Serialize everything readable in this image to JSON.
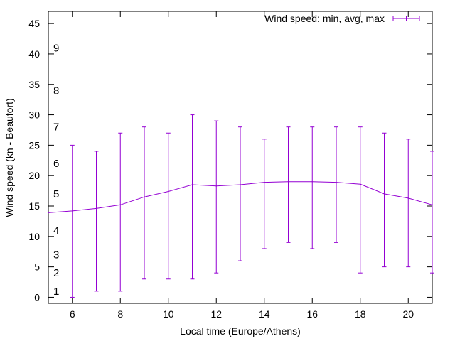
{
  "chart_data": {
    "type": "line",
    "title": "",
    "xlabel": "Local time (Europe/Athens)",
    "ylabel": "Wind speed (kn - Beaufort)",
    "xlim": [
      5,
      21
    ],
    "ylim": [
      -1,
      47
    ],
    "x_ticks": [
      6,
      8,
      10,
      12,
      14,
      16,
      18,
      20
    ],
    "y_ticks": [
      0,
      5,
      10,
      15,
      20,
      25,
      30,
      35,
      40,
      45
    ],
    "legend": "top-right",
    "series": [
      {
        "name": "Wind speed: min, avg, max",
        "color": "#9400d3",
        "x": [
          5,
          6,
          7,
          8,
          9,
          10,
          11,
          12,
          13,
          14,
          15,
          16,
          17,
          18,
          19,
          20,
          21
        ],
        "avg": [
          13.9,
          14.2,
          14.6,
          15.2,
          16.5,
          17.4,
          18.5,
          18.3,
          18.5,
          18.9,
          19.0,
          19.0,
          18.9,
          18.6,
          17.0,
          16.3,
          15.2
        ],
        "min": [
          null,
          0,
          1,
          1,
          3,
          3,
          3,
          4,
          6,
          8,
          9,
          8,
          9,
          4,
          5,
          5,
          4
        ],
        "max": [
          null,
          25,
          24,
          27,
          28,
          27,
          30,
          29,
          28,
          26,
          28,
          28,
          28,
          28,
          27,
          26,
          24
        ]
      }
    ],
    "beaufort_labels": [
      {
        "value": 1,
        "label": "1"
      },
      {
        "value": 4,
        "label": "2"
      },
      {
        "value": 7,
        "label": "3"
      },
      {
        "value": 11,
        "label": "4"
      },
      {
        "value": 17,
        "label": "5"
      },
      {
        "value": 22,
        "label": "6"
      },
      {
        "value": 28,
        "label": "7"
      },
      {
        "value": 34,
        "label": "8"
      },
      {
        "value": 41,
        "label": "9"
      }
    ]
  }
}
